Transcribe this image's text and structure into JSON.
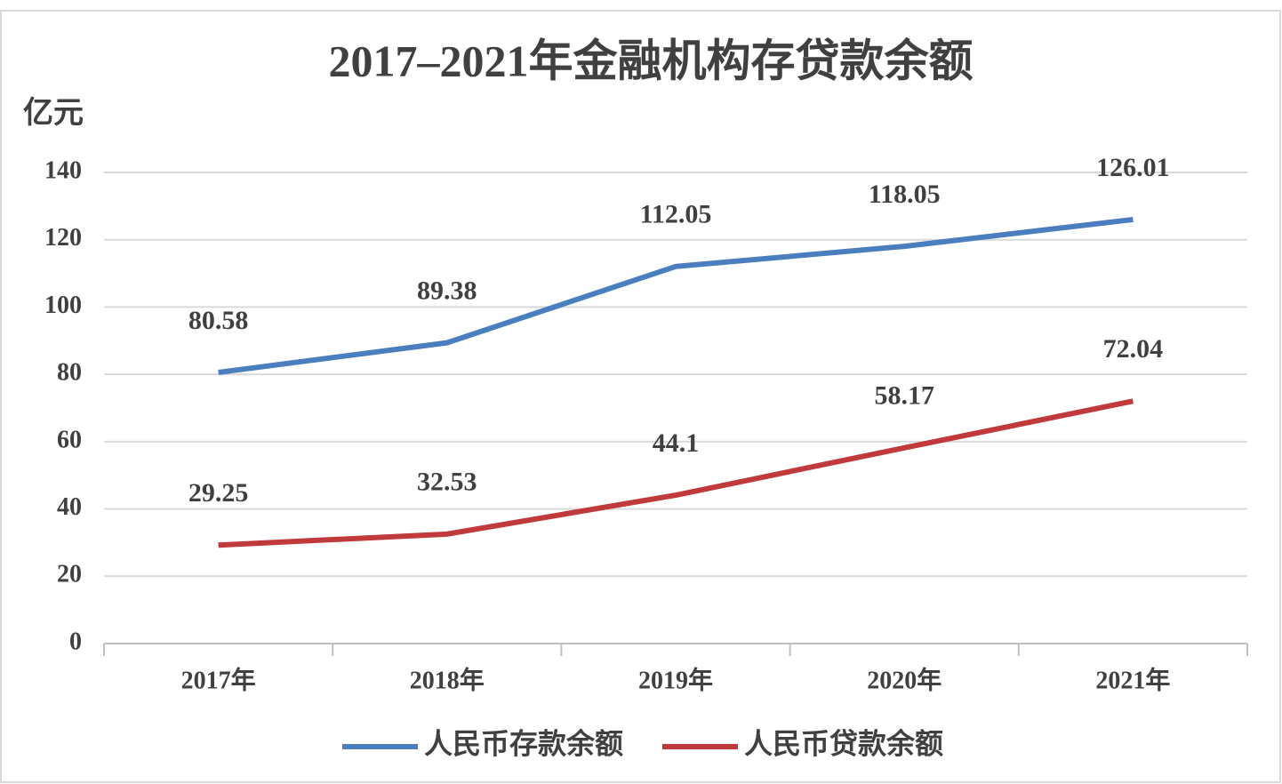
{
  "chart_data": {
    "type": "line",
    "title": "2017–2021年金融机构存贷款余额",
    "ylabel": "亿元",
    "categories": [
      "2017年",
      "2018年",
      "2019年",
      "2020年",
      "2021年"
    ],
    "series": [
      {
        "name": "人民币存款余额",
        "color": "#4a7ebf",
        "values": [
          80.58,
          89.38,
          112.05,
          118.05,
          126.01
        ]
      },
      {
        "name": "人民币贷款余额",
        "color": "#c0393b",
        "values": [
          29.25,
          32.53,
          44.1,
          58.17,
          72.04
        ]
      }
    ],
    "ylim": [
      0,
      140
    ],
    "yticks": [
      0,
      20,
      40,
      60,
      80,
      100,
      120,
      140
    ],
    "grid": true,
    "legend": "bottom"
  }
}
